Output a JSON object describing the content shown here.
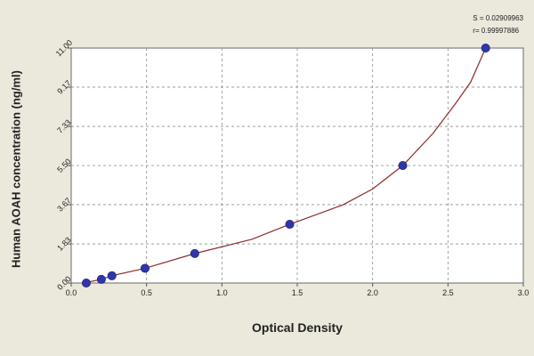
{
  "chart_data": {
    "type": "scatter",
    "title": "",
    "xlabel": "Optical Density",
    "ylabel": "Human AOAH concentration (ng/ml)",
    "xlim": [
      0.0,
      3.0
    ],
    "ylim": [
      0.0,
      11.0
    ],
    "xticks": [
      "0.0",
      "0.5",
      "1.0",
      "1.5",
      "2.0",
      "2.5",
      "3.0"
    ],
    "yticks": [
      "0.00",
      "1.83",
      "3.67",
      "5.50",
      "7.33",
      "9.17",
      "11.00"
    ],
    "grid": true,
    "annotation_lines": [
      "S = 0.02909963",
      "r= 0.99997886"
    ],
    "series": [
      {
        "type": "scatter",
        "points": [
          {
            "x": 0.1,
            "y": 0.0
          },
          {
            "x": 0.2,
            "y": 0.17
          },
          {
            "x": 0.27,
            "y": 0.34
          },
          {
            "x": 0.49,
            "y": 0.69
          },
          {
            "x": 0.82,
            "y": 1.38
          },
          {
            "x": 1.45,
            "y": 2.75
          },
          {
            "x": 2.2,
            "y": 5.5
          },
          {
            "x": 2.75,
            "y": 11.0
          }
        ],
        "color": "#2f36a9"
      },
      {
        "type": "line",
        "points": [
          {
            "x": 0.08,
            "y": 0.0
          },
          {
            "x": 0.2,
            "y": 0.17
          },
          {
            "x": 0.27,
            "y": 0.34
          },
          {
            "x": 0.49,
            "y": 0.69
          },
          {
            "x": 0.82,
            "y": 1.38
          },
          {
            "x": 1.2,
            "y": 2.05
          },
          {
            "x": 1.45,
            "y": 2.75
          },
          {
            "x": 1.8,
            "y": 3.65
          },
          {
            "x": 2.0,
            "y": 4.4
          },
          {
            "x": 2.2,
            "y": 5.5
          },
          {
            "x": 2.4,
            "y": 7.0
          },
          {
            "x": 2.55,
            "y": 8.4
          },
          {
            "x": 2.65,
            "y": 9.4
          },
          {
            "x": 2.75,
            "y": 11.0
          }
        ],
        "color": "#8b2b2b"
      }
    ]
  }
}
